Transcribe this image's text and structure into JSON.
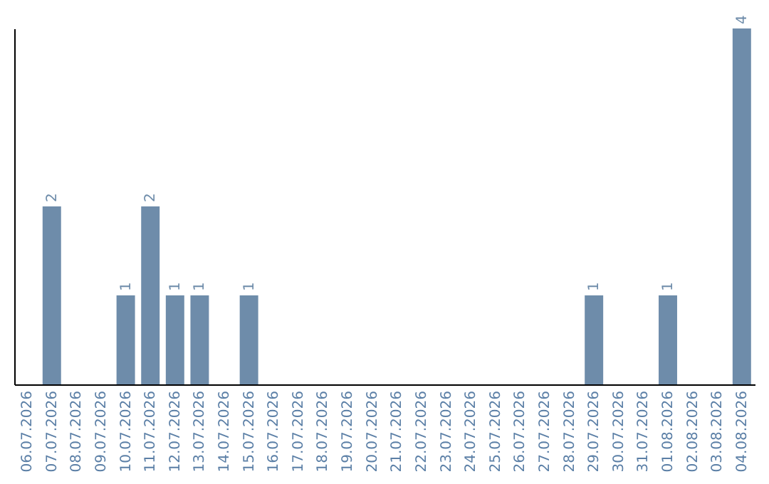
{
  "chart_data": {
    "type": "bar",
    "categories": [
      "06.07.2026",
      "07.07.2026",
      "08.07.2026",
      "09.07.2026",
      "10.07.2026",
      "11.07.2026",
      "12.07.2026",
      "13.07.2026",
      "14.07.2026",
      "15.07.2026",
      "16.07.2026",
      "17.07.2026",
      "18.07.2026",
      "19.07.2026",
      "20.07.2026",
      "21.07.2026",
      "22.07.2026",
      "23.07.2026",
      "24.07.2026",
      "25.07.2026",
      "26.07.2026",
      "27.07.2026",
      "28.07.2026",
      "29.07.2026",
      "30.07.2026",
      "31.07.2026",
      "01.08.2026",
      "02.08.2026",
      "03.08.2026",
      "04.08.2026"
    ],
    "values": [
      0,
      2,
      0,
      0,
      1,
      2,
      1,
      1,
      0,
      1,
      0,
      0,
      0,
      0,
      0,
      0,
      0,
      0,
      0,
      0,
      0,
      0,
      0,
      1,
      0,
      0,
      1,
      0,
      0,
      4
    ],
    "value_labels": [
      null,
      "2",
      null,
      null,
      "1",
      "2",
      "1",
      "1",
      null,
      "1",
      null,
      null,
      null,
      null,
      null,
      null,
      null,
      null,
      null,
      null,
      null,
      null,
      null,
      "1",
      null,
      null,
      "1",
      null,
      null,
      "4"
    ],
    "color": "#6e8caa",
    "ylim": [
      0,
      4
    ],
    "tick_labels": "x",
    "grid": false
  }
}
